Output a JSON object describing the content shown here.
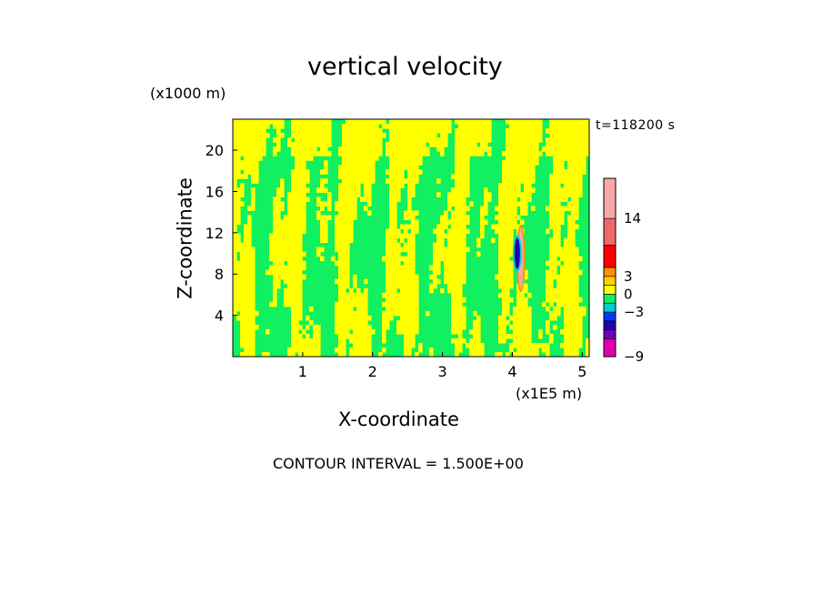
{
  "chart_data": {
    "type": "heatmap",
    "title": "vertical velocity",
    "xlabel": "X-coordinate",
    "ylabel": "Z-coordinate",
    "x_unit": "(x1E5 m)",
    "z_unit": "(x1000 m)",
    "time_label": "t=118200 s",
    "contour_interval": "CONTOUR INTERVAL = 1.500E+00",
    "xlim": [
      0,
      5.1
    ],
    "ylim": [
      0,
      23
    ],
    "x_ticks": [
      1,
      2,
      3,
      4,
      5
    ],
    "y_ticks": [
      4,
      8,
      12,
      16,
      20
    ],
    "field_description": "Mostly alternating bands of green (about -1.5 to 0) and yellow (0 to 1.5), with a narrow strong updraft/downdraft pair near x=4.1, z=8-12",
    "colorbar": {
      "levels": [
        -9,
        -7.5,
        -6,
        -4.5,
        -3,
        -1.5,
        0,
        1.5,
        3,
        4.5,
        6,
        14,
        20
      ],
      "colors": [
        "#e000b0",
        "#7000c0",
        "#2000b0",
        "#0038ff",
        "#00d0d0",
        "#10f060",
        "#ffff00",
        "#ffd000",
        "#ff9000",
        "#ff0000",
        "#f06868",
        "#f8a8a8"
      ],
      "tick_labels": [
        "14",
        "3",
        "0",
        "-3",
        "-9"
      ],
      "tick_values": [
        14,
        3,
        0,
        -3,
        -9
      ]
    },
    "cells_features": [
      {
        "kind": "updraft",
        "x": 4.12,
        "z_min": 6.5,
        "z_max": 12.5,
        "value": 14
      },
      {
        "kind": "downdraft",
        "x": 4.07,
        "z_min": 8.5,
        "z_max": 11.5,
        "value": -6
      }
    ]
  }
}
